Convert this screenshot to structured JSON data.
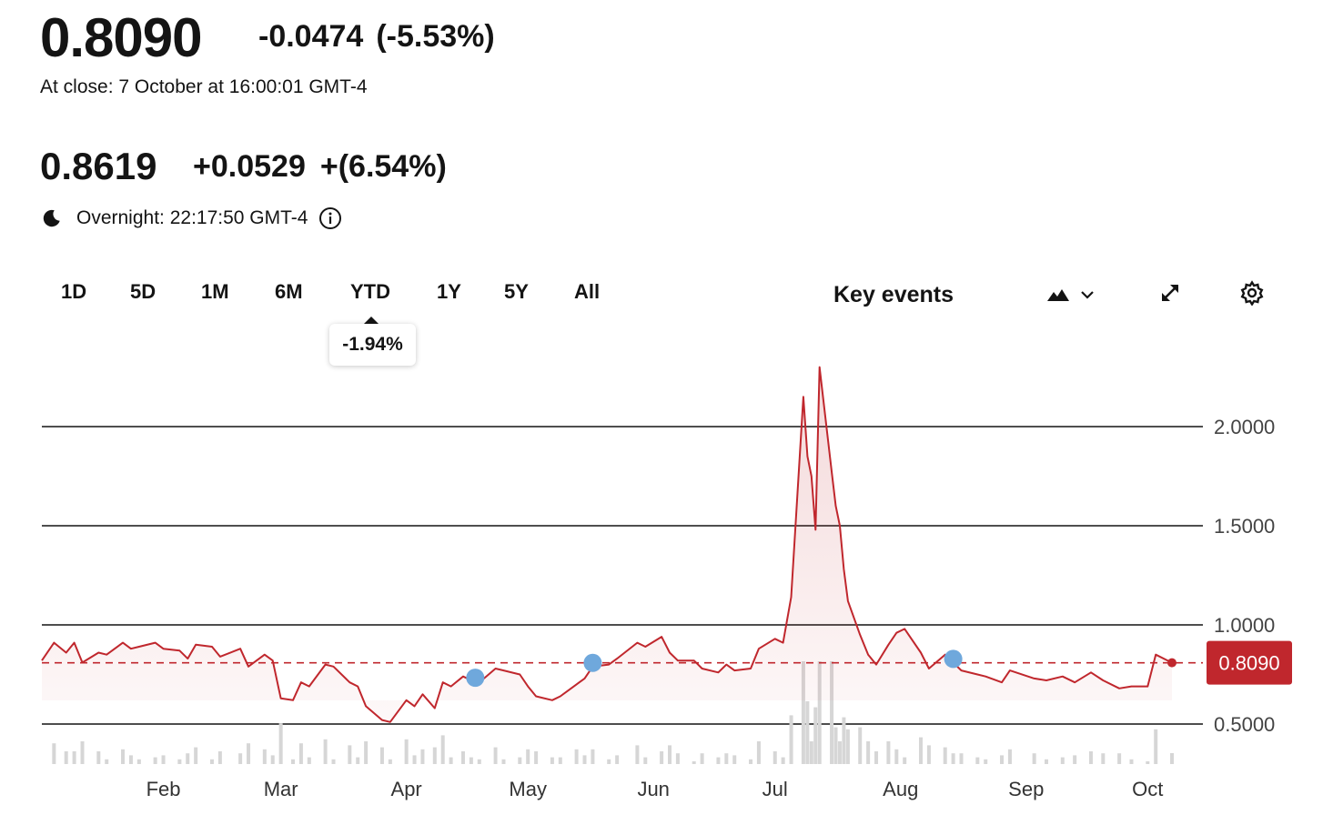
{
  "quote": {
    "price": "0.8090",
    "change": "-0.0474",
    "change_pct": "(-5.53%)",
    "close_label": "At close: 7 October at 16:00:01 GMT-4",
    "overnight_price": "0.8619",
    "overnight_change": "+0.0529",
    "overnight_change_pct": "+(6.54%)",
    "overnight_label": "Overnight: 22:17:50 GMT-4"
  },
  "toolbar": {
    "ranges": [
      "1D",
      "5D",
      "1M",
      "6M",
      "YTD",
      "1Y",
      "5Y",
      "All"
    ],
    "selected_range": "YTD",
    "selected_change": "-1.94%",
    "key_events_label": "Key events",
    "icons": [
      "mountain-chart-icon",
      "chevron-down-icon",
      "expand-icon",
      "gear-icon"
    ]
  },
  "colors": {
    "line": "#c0272d",
    "fill": "#fbe5e6",
    "event_dot": "#6fa8dc",
    "badge": "#c0272d",
    "volume": "#d6d6d6"
  },
  "chart_data": {
    "type": "area",
    "y_ticks": [
      "2.0000",
      "1.5000",
      "1.0000",
      "0.5000"
    ],
    "ylim": [
      0.3,
      2.3
    ],
    "x_labels": [
      "Feb",
      "Mar",
      "Apr",
      "May",
      "Jun",
      "Jul",
      "Aug",
      "Sep",
      "Oct"
    ],
    "current_value": 0.809,
    "current_label": "0.8090",
    "grid": true,
    "series": [
      {
        "x": [
          "2024-01-02",
          "2024-01-05",
          "2024-01-08",
          "2024-01-10",
          "2024-01-12",
          "2024-01-16",
          "2024-01-18",
          "2024-01-22",
          "2024-01-24",
          "2024-01-26",
          "2024-01-30",
          "2024-02-01",
          "2024-02-05",
          "2024-02-07",
          "2024-02-09",
          "2024-02-13",
          "2024-02-15",
          "2024-02-20",
          "2024-02-22",
          "2024-02-26",
          "2024-02-28",
          "2024-03-01",
          "2024-03-04",
          "2024-03-06",
          "2024-03-08",
          "2024-03-12",
          "2024-03-14",
          "2024-03-18",
          "2024-03-20",
          "2024-03-22",
          "2024-03-26",
          "2024-03-28",
          "2024-04-01",
          "2024-04-03",
          "2024-04-05",
          "2024-04-08",
          "2024-04-10",
          "2024-04-12",
          "2024-04-15",
          "2024-04-17",
          "2024-04-19",
          "2024-04-23",
          "2024-04-25",
          "2024-04-29",
          "2024-05-01",
          "2024-05-03",
          "2024-05-07",
          "2024-05-09",
          "2024-05-13",
          "2024-05-15",
          "2024-05-17",
          "2024-05-21",
          "2024-05-23",
          "2024-05-28",
          "2024-05-30",
          "2024-06-03",
          "2024-06-05",
          "2024-06-07",
          "2024-06-11",
          "2024-06-13",
          "2024-06-17",
          "2024-06-19",
          "2024-06-21",
          "2024-06-25",
          "2024-06-27",
          "2024-07-01",
          "2024-07-03",
          "2024-07-05",
          "2024-07-08",
          "2024-07-09",
          "2024-07-10",
          "2024-07-11",
          "2024-07-12",
          "2024-07-15",
          "2024-07-16",
          "2024-07-17",
          "2024-07-18",
          "2024-07-19",
          "2024-07-22",
          "2024-07-24",
          "2024-07-26",
          "2024-07-29",
          "2024-07-31",
          "2024-08-02",
          "2024-08-06",
          "2024-08-08",
          "2024-08-12",
          "2024-08-14",
          "2024-08-16",
          "2024-08-20",
          "2024-08-22",
          "2024-08-26",
          "2024-08-28",
          "2024-09-03",
          "2024-09-06",
          "2024-09-10",
          "2024-09-13",
          "2024-09-17",
          "2024-09-20",
          "2024-09-24",
          "2024-09-27",
          "2024-10-01",
          "2024-10-03",
          "2024-10-07"
        ],
        "y": [
          0.82,
          0.91,
          0.86,
          0.91,
          0.81,
          0.86,
          0.85,
          0.91,
          0.88,
          0.89,
          0.91,
          0.88,
          0.87,
          0.83,
          0.9,
          0.89,
          0.84,
          0.88,
          0.79,
          0.85,
          0.82,
          0.63,
          0.62,
          0.71,
          0.69,
          0.8,
          0.79,
          0.71,
          0.69,
          0.59,
          0.52,
          0.51,
          0.62,
          0.59,
          0.65,
          0.58,
          0.71,
          0.69,
          0.74,
          0.72,
          0.71,
          0.78,
          0.77,
          0.75,
          0.69,
          0.64,
          0.62,
          0.64,
          0.7,
          0.73,
          0.79,
          0.8,
          0.83,
          0.91,
          0.89,
          0.94,
          0.86,
          0.82,
          0.82,
          0.78,
          0.76,
          0.8,
          0.77,
          0.78,
          0.88,
          0.93,
          0.91,
          1.14,
          2.15,
          1.85,
          1.75,
          1.48,
          2.3,
          1.77,
          1.6,
          1.5,
          1.28,
          1.12,
          0.95,
          0.85,
          0.8,
          0.9,
          0.96,
          0.98,
          0.86,
          0.78,
          0.85,
          0.81,
          0.77,
          0.75,
          0.74,
          0.71,
          0.77,
          0.73,
          0.72,
          0.74,
          0.71,
          0.76,
          0.72,
          0.68,
          0.69,
          0.69,
          0.85,
          0.809
        ]
      }
    ],
    "event_markers": [
      "2024-04-18",
      "2024-05-17",
      "2024-08-14"
    ]
  }
}
